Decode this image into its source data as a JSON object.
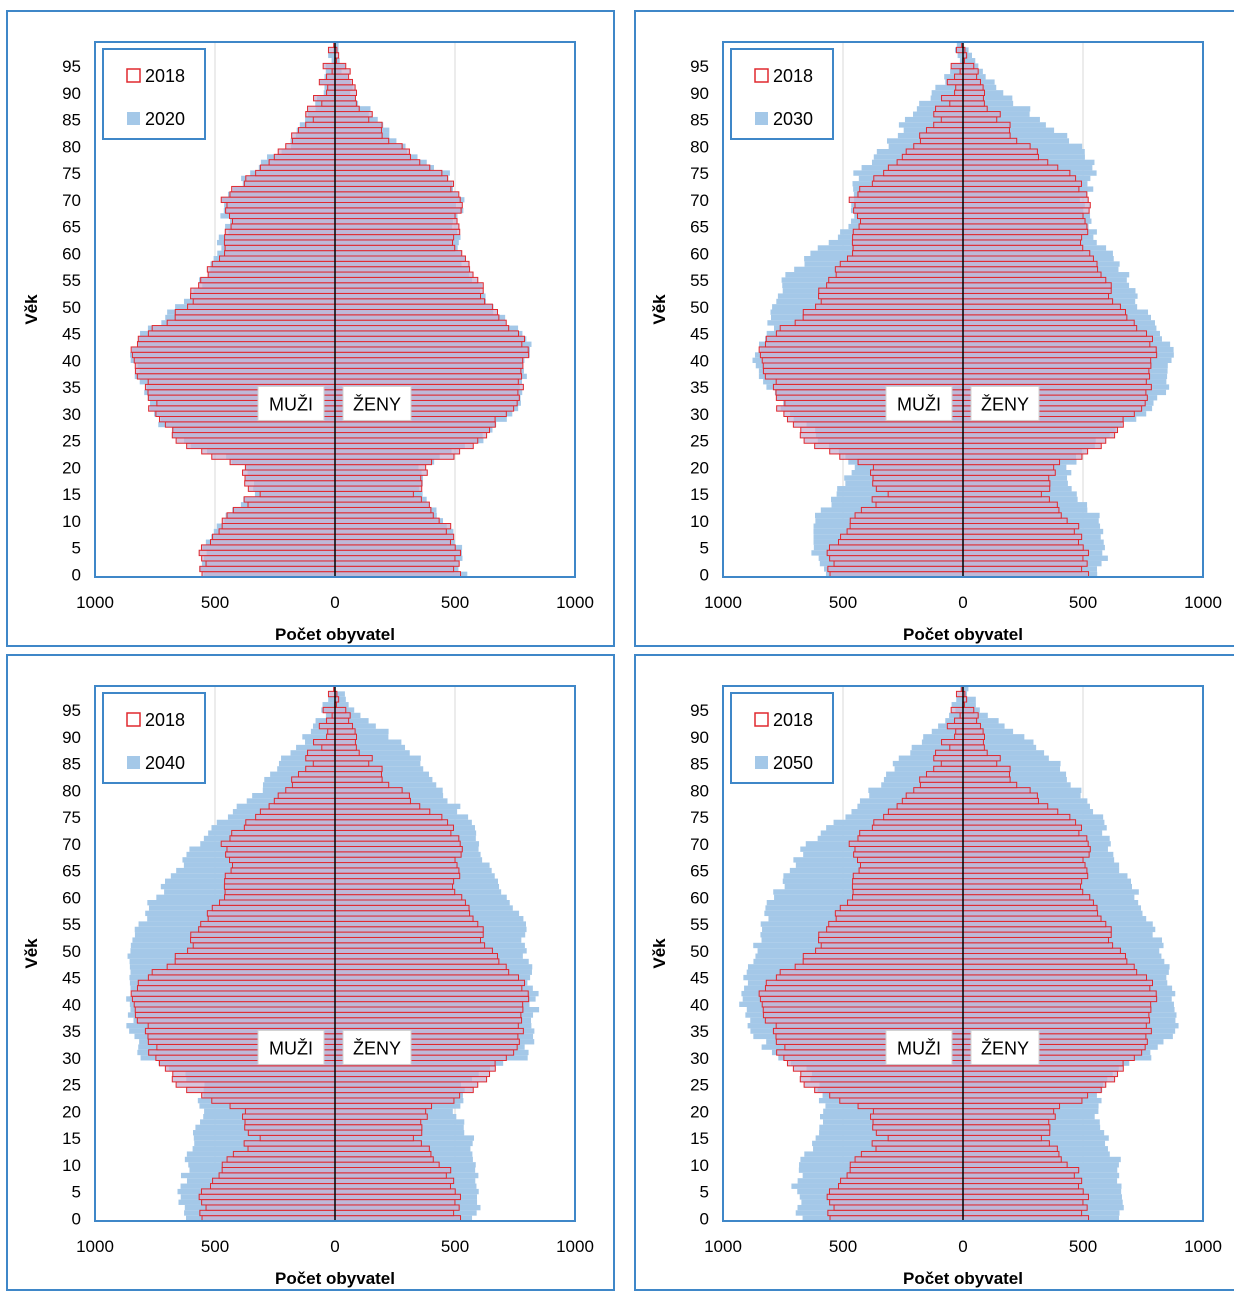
{
  "chart_data": [
    {
      "type": "population_pyramid",
      "title": "",
      "xlabel": "Počet obyvatel",
      "ylabel": "Věk",
      "xlim": [
        -1000,
        1000
      ],
      "x_tick_labels": [
        "1000",
        "500",
        "0",
        "500",
        "1000"
      ],
      "y_tick_labels": [
        "0",
        "5",
        "10",
        "15",
        "20",
        "25",
        "30",
        "35",
        "40",
        "45",
        "50",
        "55",
        "60",
        "65",
        "70",
        "75",
        "80",
        "85",
        "90",
        "95"
      ],
      "left_label": "MUŽI",
      "right_label": "ŽENY",
      "legend_position": "top-left",
      "colors": {
        "base_outline": "#e0282f",
        "base_fill": "#c7b3d3",
        "compare_fill": "#a4c8e8",
        "frame": "#3f87c8"
      },
      "series": [
        {
          "name": "2018",
          "style": "outline",
          "knots_age": [
            0,
            5,
            10,
            15,
            20,
            25,
            28,
            30,
            35,
            40,
            43,
            45,
            50,
            55,
            60,
            65,
            70,
            75,
            80,
            85,
            90,
            95,
            99
          ],
          "male": [
            540,
            550,
            470,
            330,
            390,
            650,
            700,
            750,
            790,
            850,
            830,
            770,
            620,
            550,
            470,
            450,
            460,
            340,
            190,
            110,
            60,
            25,
            5
          ],
          "female": [
            520,
            510,
            450,
            340,
            380,
            610,
            660,
            720,
            760,
            800,
            790,
            740,
            640,
            590,
            510,
            500,
            530,
            440,
            260,
            150,
            80,
            30,
            5
          ]
        },
        {
          "name": "2020",
          "style": "fill",
          "knots_age": [
            0,
            5,
            10,
            15,
            20,
            25,
            28,
            30,
            35,
            40,
            43,
            45,
            50,
            55,
            60,
            65,
            70,
            75,
            80,
            85,
            90,
            95,
            99
          ],
          "male": [
            560,
            540,
            480,
            340,
            360,
            640,
            720,
            760,
            800,
            840,
            840,
            800,
            650,
            550,
            490,
            450,
            470,
            360,
            200,
            120,
            60,
            25,
            5
          ],
          "female": [
            540,
            510,
            450,
            350,
            360,
            600,
            680,
            740,
            780,
            790,
            800,
            770,
            650,
            590,
            510,
            500,
            530,
            460,
            280,
            160,
            80,
            30,
            5
          ]
        }
      ]
    },
    {
      "type": "population_pyramid",
      "title": "",
      "xlabel": "Počet obyvatel",
      "ylabel": "Věk",
      "xlim": [
        -1000,
        1000
      ],
      "x_tick_labels": [
        "1000",
        "500",
        "0",
        "500",
        "1000"
      ],
      "y_tick_labels": [
        "0",
        "5",
        "10",
        "15",
        "20",
        "25",
        "30",
        "35",
        "40",
        "45",
        "50",
        "55",
        "60",
        "65",
        "70",
        "75",
        "80",
        "85",
        "90",
        "95"
      ],
      "left_label": "MUŽI",
      "right_label": "ŽENY",
      "legend_position": "top-left",
      "colors": {
        "base_outline": "#e0282f",
        "base_fill": "#c7b3d3",
        "compare_fill": "#a4c8e8",
        "frame": "#3f87c8"
      },
      "series": [
        {
          "name": "2018",
          "style": "outline",
          "knots_age": [
            0,
            5,
            10,
            15,
            20,
            25,
            28,
            30,
            35,
            40,
            43,
            45,
            50,
            55,
            60,
            65,
            70,
            75,
            80,
            85,
            90,
            95,
            99
          ],
          "male": [
            540,
            550,
            470,
            330,
            390,
            650,
            700,
            750,
            790,
            850,
            830,
            770,
            620,
            550,
            470,
            450,
            460,
            340,
            190,
            110,
            60,
            25,
            5
          ],
          "female": [
            520,
            510,
            450,
            340,
            380,
            610,
            660,
            720,
            760,
            800,
            790,
            740,
            640,
            590,
            510,
            500,
            530,
            440,
            260,
            150,
            80,
            30,
            5
          ]
        },
        {
          "name": "2030",
          "style": "fill",
          "knots_age": [
            0,
            5,
            10,
            15,
            20,
            25,
            28,
            30,
            35,
            40,
            43,
            45,
            50,
            55,
            60,
            65,
            70,
            75,
            80,
            85,
            90,
            95,
            99
          ],
          "male": [
            590,
            620,
            620,
            520,
            450,
            590,
            650,
            740,
            810,
            880,
            850,
            800,
            790,
            750,
            620,
            470,
            450,
            440,
            320,
            230,
            120,
            40,
            8
          ],
          "female": [
            560,
            600,
            580,
            470,
            430,
            570,
            650,
            780,
            840,
            870,
            860,
            820,
            740,
            690,
            610,
            520,
            500,
            560,
            480,
            330,
            160,
            50,
            8
          ]
        }
      ]
    },
    {
      "type": "population_pyramid",
      "title": "",
      "xlabel": "Počet obyvatel",
      "ylabel": "Věk",
      "xlim": [
        -1000,
        1000
      ],
      "x_tick_labels": [
        "1000",
        "500",
        "0",
        "500",
        "1000"
      ],
      "y_tick_labels": [
        "0",
        "5",
        "10",
        "15",
        "20",
        "25",
        "30",
        "35",
        "40",
        "45",
        "50",
        "55",
        "60",
        "65",
        "70",
        "75",
        "80",
        "85",
        "90",
        "95"
      ],
      "left_label": "MUŽI",
      "right_label": "ŽENY",
      "legend_position": "top-left",
      "colors": {
        "base_outline": "#e0282f",
        "base_fill": "#c7b3d3",
        "compare_fill": "#a4c8e8",
        "frame": "#3f87c8"
      },
      "series": [
        {
          "name": "2018",
          "style": "outline",
          "knots_age": [
            0,
            5,
            10,
            15,
            20,
            25,
            28,
            30,
            35,
            40,
            43,
            45,
            50,
            55,
            60,
            65,
            70,
            75,
            80,
            85,
            90,
            95,
            99
          ],
          "male": [
            540,
            550,
            470,
            330,
            390,
            650,
            700,
            750,
            790,
            850,
            830,
            770,
            620,
            550,
            470,
            450,
            460,
            340,
            190,
            110,
            60,
            25,
            5
          ],
          "female": [
            520,
            510,
            450,
            340,
            380,
            610,
            660,
            720,
            760,
            800,
            790,
            740,
            640,
            590,
            510,
            500,
            530,
            440,
            260,
            150,
            80,
            30,
            5
          ]
        },
        {
          "name": "2040",
          "style": "fill",
          "knots_age": [
            0,
            5,
            10,
            15,
            20,
            25,
            28,
            30,
            35,
            40,
            43,
            45,
            50,
            55,
            60,
            65,
            70,
            75,
            80,
            85,
            90,
            95,
            99
          ],
          "male": [
            630,
            640,
            620,
            600,
            560,
            560,
            680,
            800,
            850,
            860,
            870,
            860,
            860,
            810,
            750,
            650,
            580,
            450,
            320,
            230,
            120,
            40,
            8
          ],
          "female": [
            580,
            600,
            600,
            560,
            510,
            540,
            650,
            790,
            840,
            830,
            830,
            810,
            800,
            780,
            720,
            640,
            600,
            540,
            450,
            370,
            240,
            80,
            10
          ]
        }
      ]
    },
    {
      "type": "population_pyramid",
      "title": "",
      "xlabel": "Počet obyvatel",
      "ylabel": "Věk",
      "xlim": [
        -1000,
        1000
      ],
      "x_tick_labels": [
        "1000",
        "500",
        "0",
        "500",
        "1000"
      ],
      "y_tick_labels": [
        "0",
        "5",
        "10",
        "15",
        "20",
        "25",
        "30",
        "35",
        "40",
        "45",
        "50",
        "55",
        "60",
        "65",
        "70",
        "75",
        "80",
        "85",
        "90",
        "95"
      ],
      "left_label": "MUŽI",
      "right_label": "ŽENY",
      "legend_position": "top-left",
      "colors": {
        "base_outline": "#e0282f",
        "base_fill": "#c7b3d3",
        "compare_fill": "#a4c8e8",
        "frame": "#3f87c8"
      },
      "series": [
        {
          "name": "2018",
          "style": "outline",
          "knots_age": [
            0,
            5,
            10,
            15,
            20,
            25,
            28,
            30,
            35,
            40,
            43,
            45,
            50,
            55,
            60,
            65,
            70,
            75,
            80,
            85,
            90,
            95,
            99
          ],
          "male": [
            540,
            550,
            470,
            330,
            390,
            650,
            700,
            750,
            790,
            850,
            830,
            770,
            620,
            550,
            470,
            450,
            460,
            340,
            190,
            110,
            60,
            25,
            5
          ],
          "female": [
            520,
            510,
            450,
            340,
            380,
            610,
            660,
            720,
            760,
            800,
            790,
            740,
            640,
            590,
            510,
            500,
            530,
            440,
            260,
            150,
            80,
            30,
            5
          ]
        },
        {
          "name": "2050",
          "style": "fill",
          "knots_age": [
            0,
            5,
            10,
            15,
            20,
            25,
            28,
            30,
            35,
            40,
            43,
            45,
            50,
            55,
            60,
            65,
            70,
            75,
            80,
            85,
            90,
            95,
            99
          ],
          "male": [
            680,
            700,
            680,
            620,
            570,
            600,
            650,
            780,
            880,
            920,
            920,
            900,
            870,
            840,
            790,
            720,
            650,
            500,
            380,
            280,
            150,
            50,
            8
          ],
          "female": [
            650,
            660,
            650,
            600,
            560,
            580,
            640,
            780,
            880,
            890,
            880,
            860,
            830,
            790,
            730,
            660,
            610,
            570,
            480,
            390,
            250,
            90,
            10
          ]
        }
      ]
    }
  ]
}
